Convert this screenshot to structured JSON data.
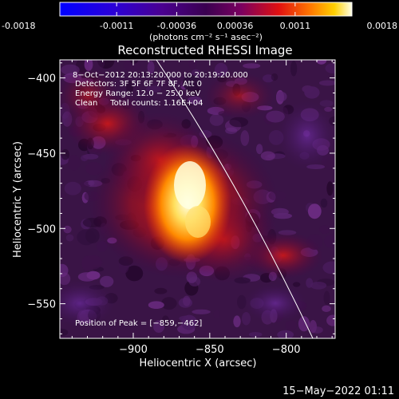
{
  "colorbar": {
    "tick_labels": [
      "-0.0018",
      "-0.0011",
      "-0.00036",
      "0.00036",
      "0.0011",
      "0.0018"
    ],
    "tick_values": [
      -0.0018,
      -0.0011,
      -0.00036,
      0.00036,
      0.0011,
      0.0018
    ],
    "range": [
      -0.0018,
      0.0018
    ],
    "unit": "(photons cm⁻² s⁻¹ asec⁻²)"
  },
  "plot": {
    "title": "Reconstructed RHESSI Image",
    "xlabel": "Heliocentric X (arcsec)",
    "ylabel": "Heliocentric Y (arcsec)",
    "x_ticks": [
      {
        "value": -900,
        "label": "−900"
      },
      {
        "value": -850,
        "label": "−850"
      },
      {
        "value": -800,
        "label": "−800"
      }
    ],
    "y_ticks": [
      {
        "value": -400,
        "label": "−400"
      },
      {
        "value": -450,
        "label": "−450"
      },
      {
        "value": -500,
        "label": "−500"
      },
      {
        "value": -550,
        "label": "−550"
      }
    ],
    "xlim": [
      -948,
      -768
    ],
    "ylim": [
      -573,
      -388
    ]
  },
  "annotations": {
    "time_range": "8−Oct−2012 20:13:20.000 to 20:19:20.000",
    "detectors": "Detectors: 3F 5F 6F 7F 8F, Att 0",
    "energy_range": "Energy Range: 12.0 − 25.0 keV",
    "method_counts": "Clean     Total counts: 1.16E+04",
    "peak_position": "Position of Peak = [−859,−462]"
  },
  "footer": {
    "timestamp": "15−May−2022 01:11"
  }
}
